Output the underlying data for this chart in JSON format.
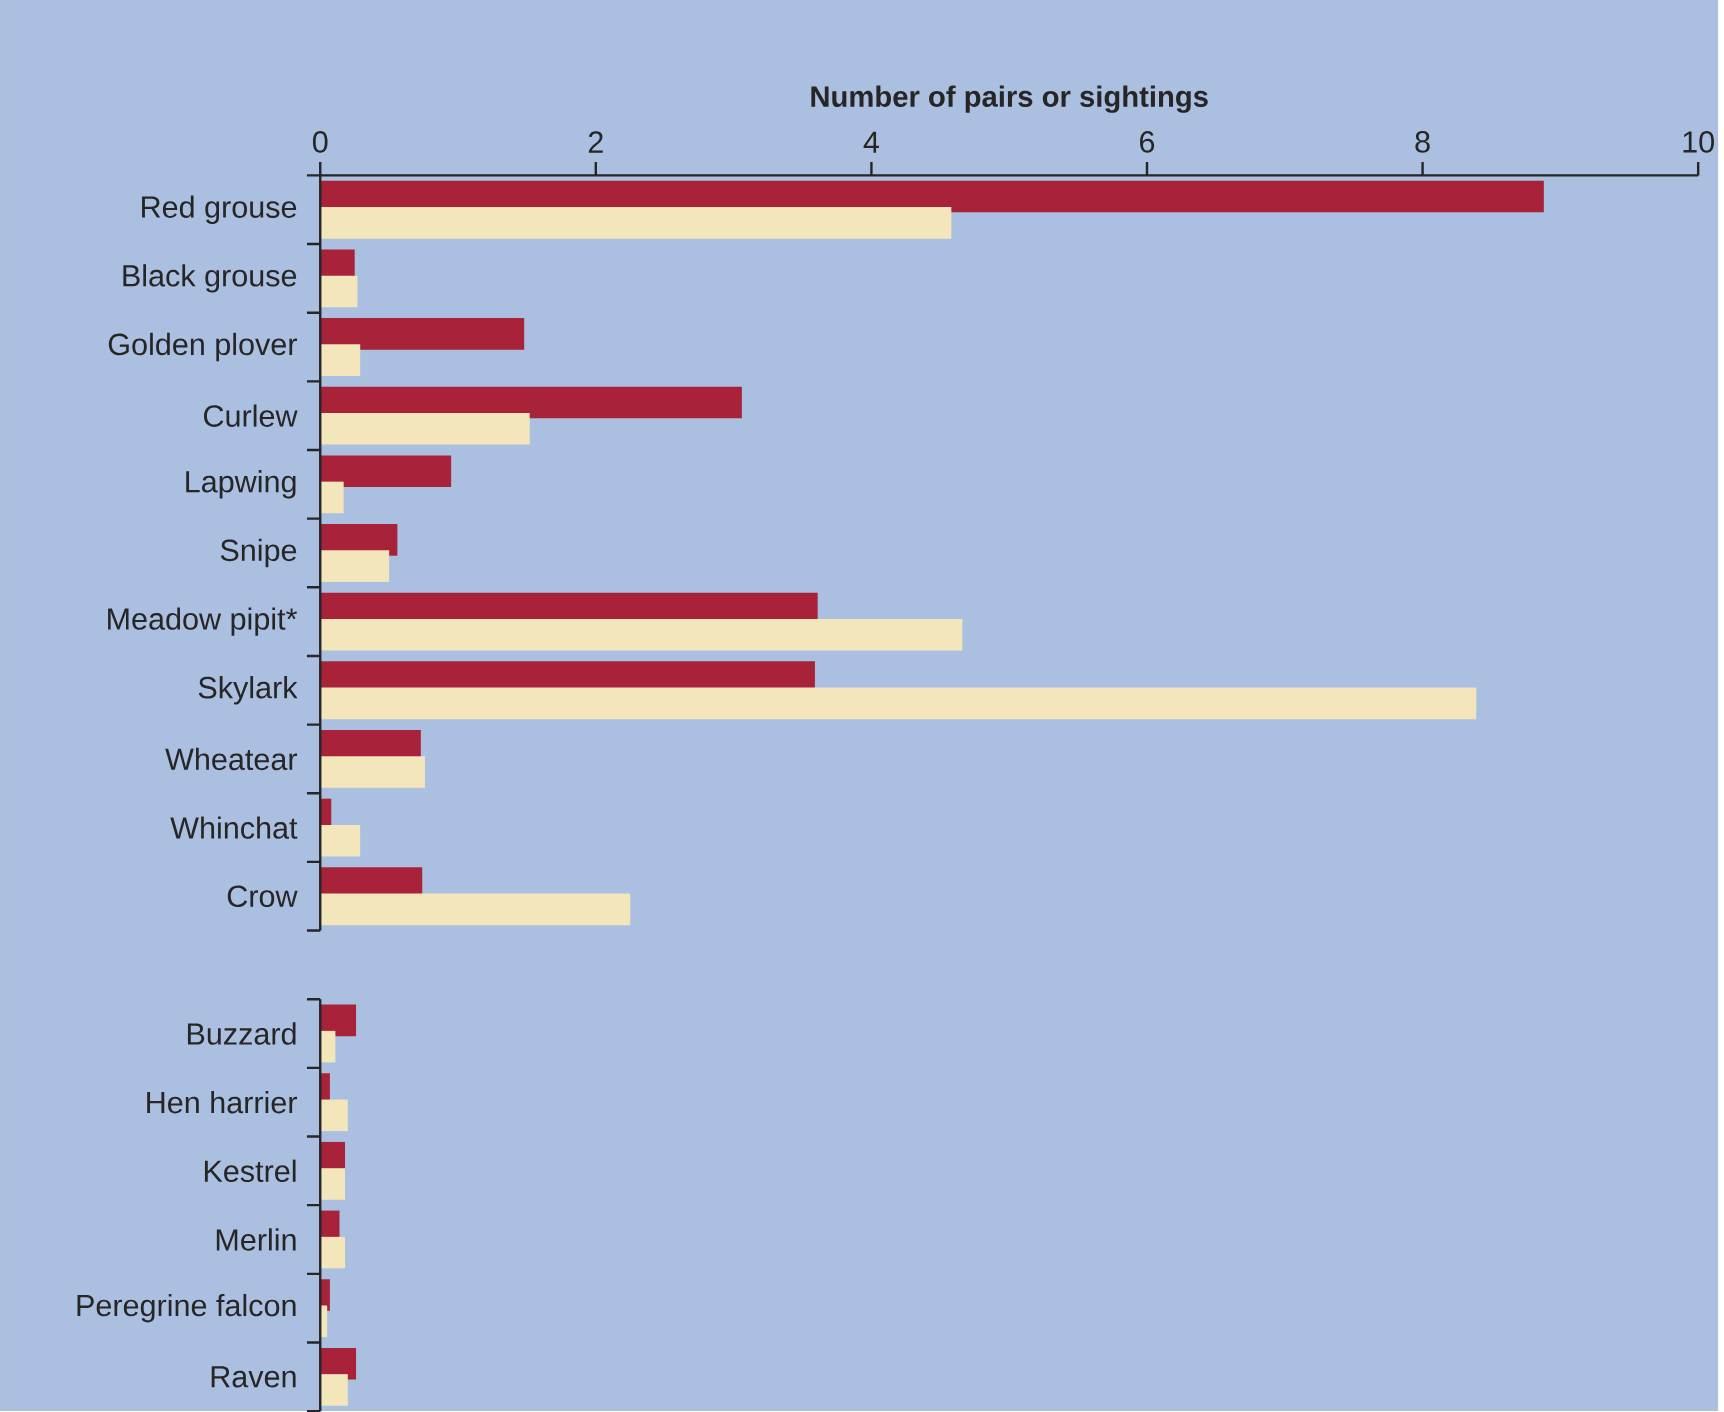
{
  "chart_data": {
    "type": "bar",
    "orientation": "horizontal",
    "xlabel": "Number of pairs or sightings",
    "categories": [
      "Red grouse",
      "Black grouse",
      "Golden plover",
      "Curlew",
      "Lapwing",
      "Snipe",
      "Meadow pipit*",
      "Skylark",
      "Wheatear",
      "Whinchat",
      "Crow",
      null,
      "Buzzard",
      "Hen harrier",
      "Kestrel",
      "Merlin",
      "Peregrine falcon",
      "Raven"
    ],
    "series": [
      {
        "color": "#a8233a",
        "values": [
          8.88,
          0.25,
          1.48,
          3.06,
          0.95,
          0.56,
          3.61,
          3.59,
          0.73,
          0.08,
          0.74,
          null,
          0.26,
          0.07,
          0.18,
          0.14,
          0.07,
          0.26
        ]
      },
      {
        "color": "#f3e6bb",
        "values": [
          4.58,
          0.27,
          0.29,
          1.52,
          0.17,
          0.5,
          4.66,
          8.39,
          0.76,
          0.29,
          2.25,
          null,
          0.11,
          0.2,
          0.18,
          0.18,
          0.05,
          0.2
        ]
      }
    ],
    "xlim": [
      0,
      10
    ],
    "xticks": [
      0,
      2,
      4,
      6,
      8,
      10
    ],
    "grid": false
  }
}
